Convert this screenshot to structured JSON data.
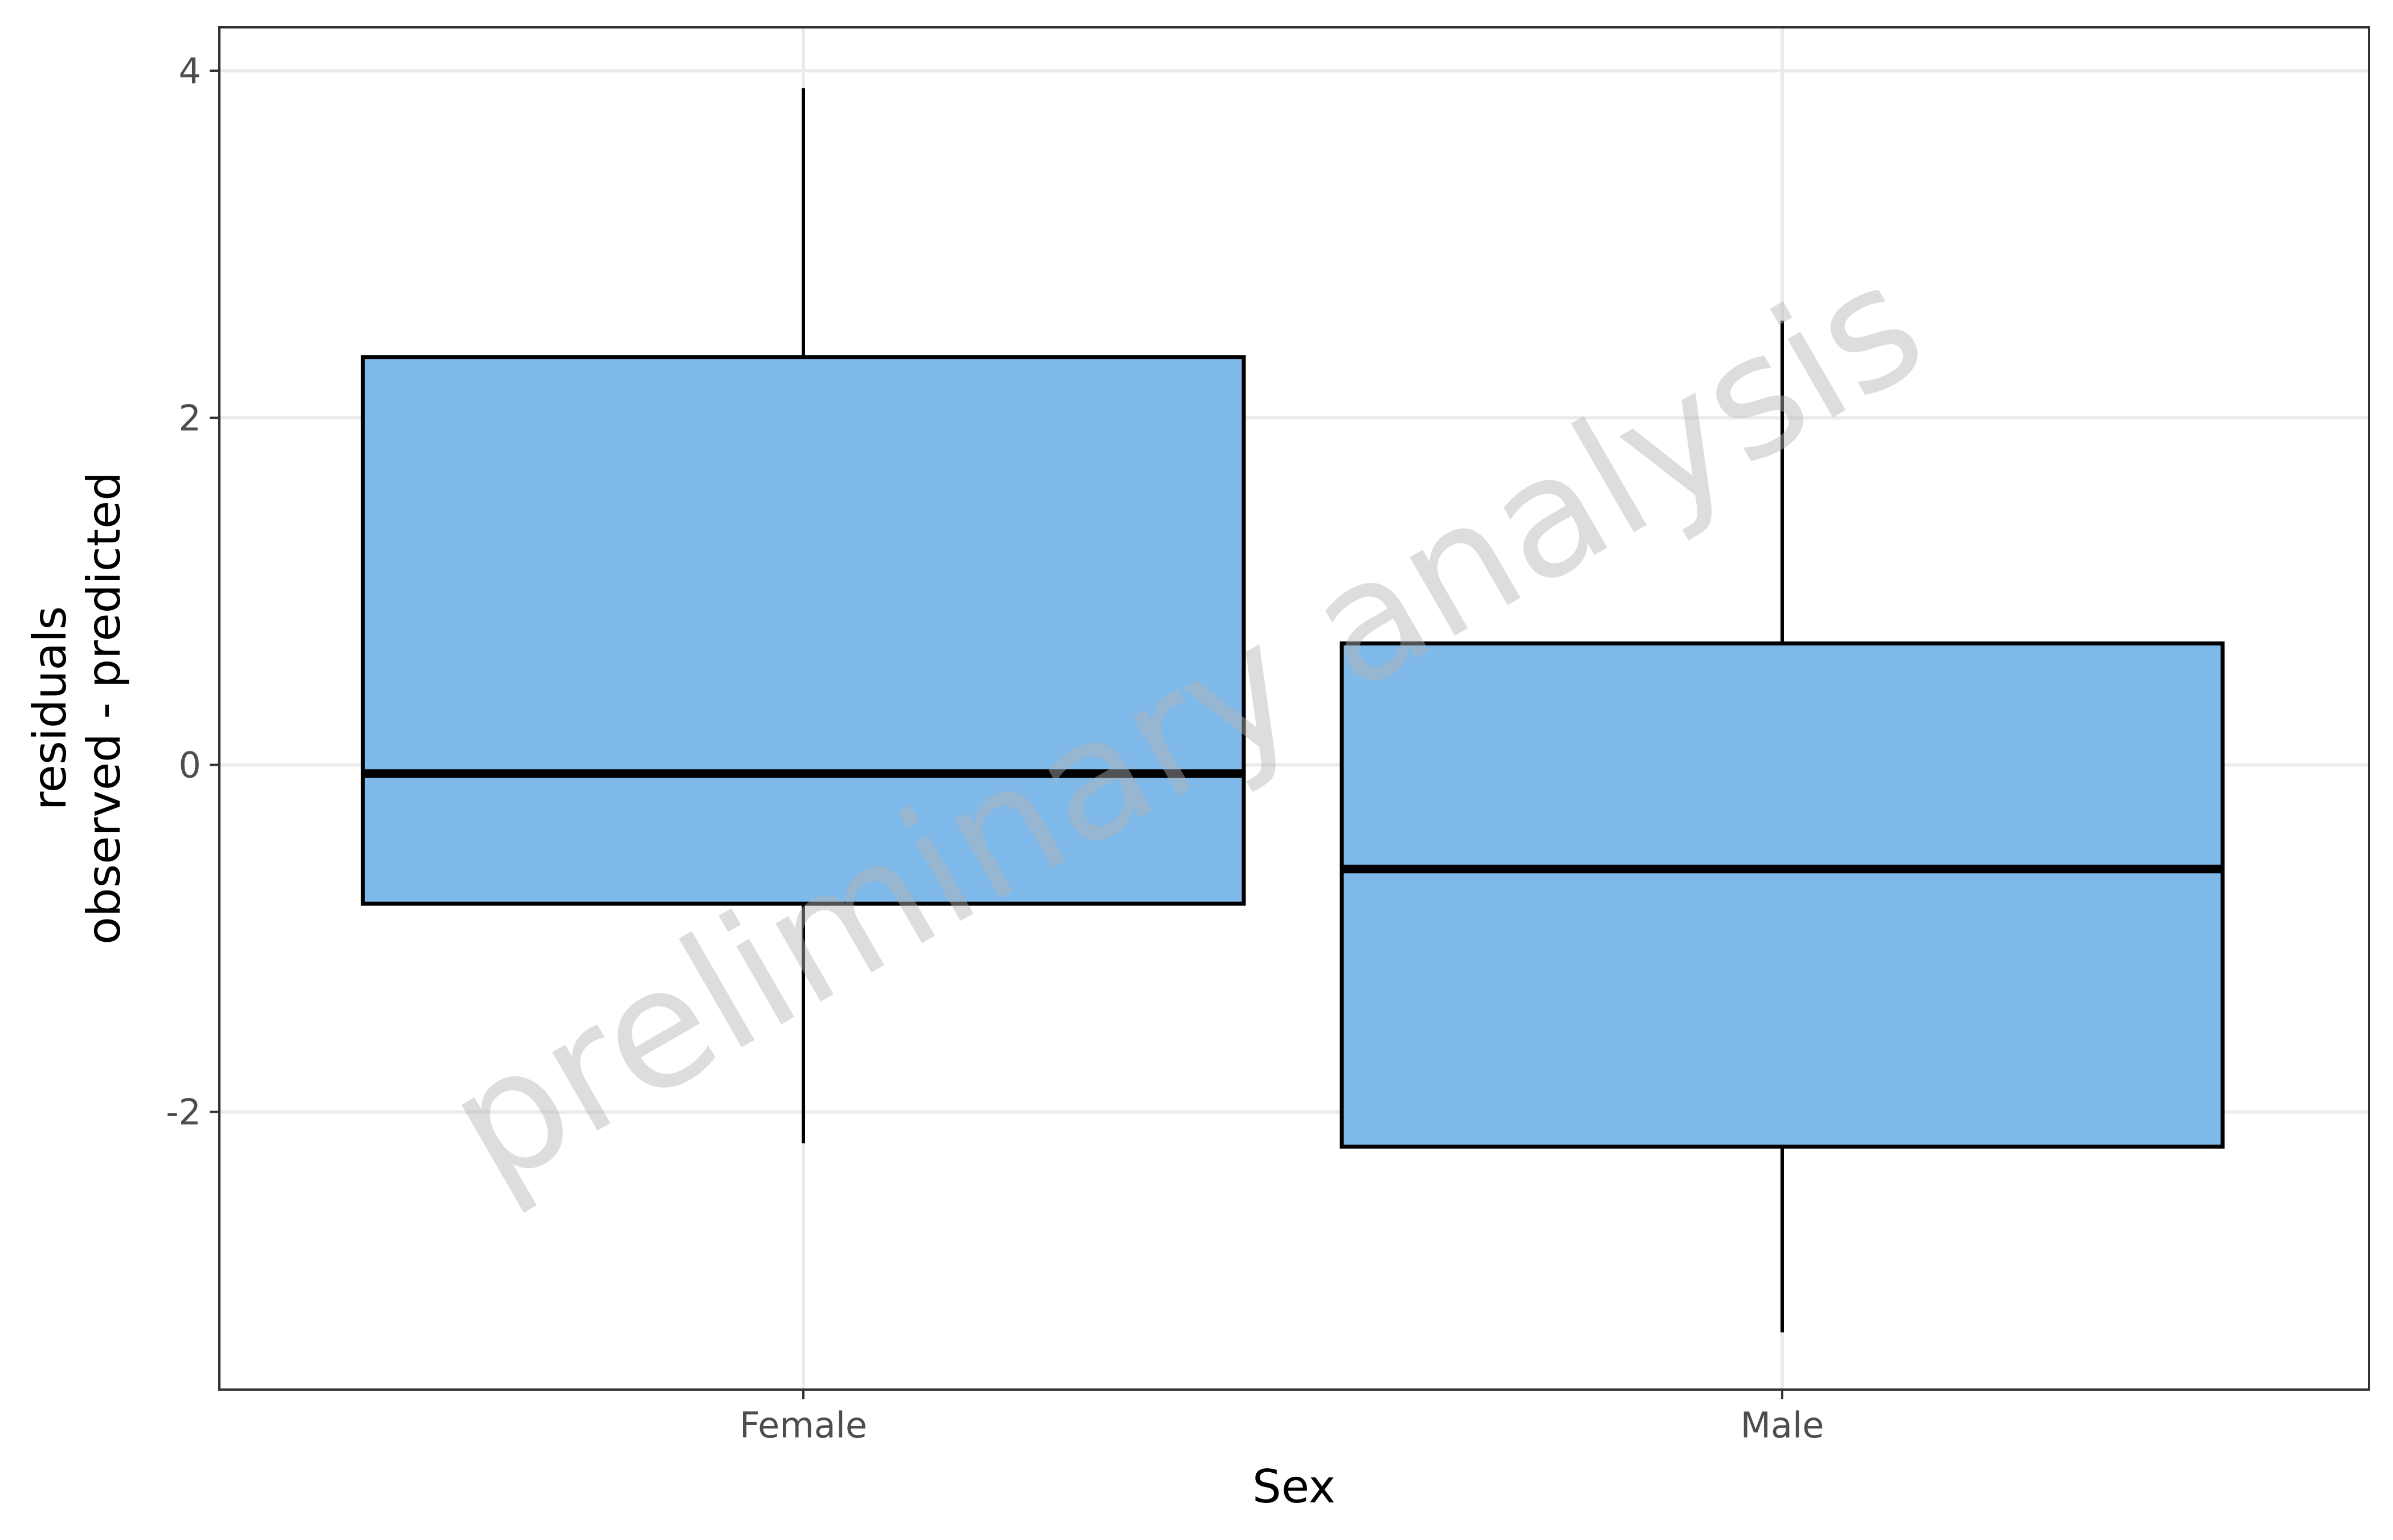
{
  "chart_data": {
    "type": "boxplot",
    "xlabel": "Sex",
    "ylabel_lines": [
      "residuals",
      "observed - predicted"
    ],
    "categories": [
      "Female",
      "Male"
    ],
    "boxes": [
      {
        "category": "Female",
        "whisker_low": -2.18,
        "q1": -0.8,
        "median": -0.05,
        "q3": 2.35,
        "whisker_high": 3.9
      },
      {
        "category": "Male",
        "whisker_low": -3.27,
        "q1": -2.2,
        "median": -0.6,
        "q3": 0.7,
        "whisker_high": 2.56
      }
    ],
    "y_ticks": [
      -2,
      0,
      2,
      4
    ],
    "y_tick_labels": [
      "-2",
      "0",
      "2",
      "4"
    ],
    "ylim": [
      -3.6,
      4.25
    ],
    "grid": true,
    "watermark": "preliminary analysis",
    "colors": {
      "box_fill": "#7fb9e9",
      "box_stroke": "#000000",
      "grid": "#ebebeb",
      "panel_border": "#333333"
    }
  }
}
